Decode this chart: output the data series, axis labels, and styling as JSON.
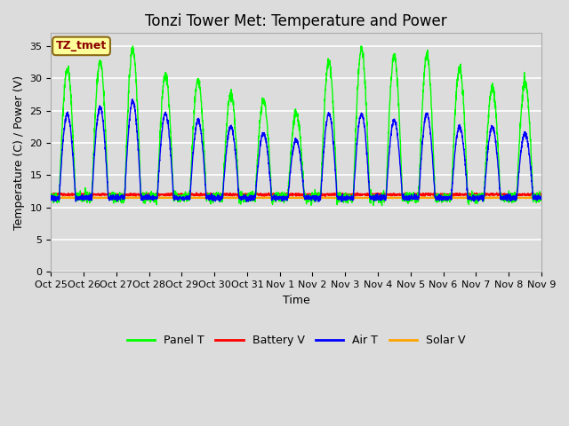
{
  "title": "Tonzi Tower Met: Temperature and Power",
  "xlabel": "Time",
  "ylabel": "Temperature (C) / Power (V)",
  "ylim": [
    0,
    37
  ],
  "yticks": [
    0,
    5,
    10,
    15,
    20,
    25,
    30,
    35
  ],
  "xlim_start": 0,
  "xlim_end": 360,
  "xtick_positions": [
    0,
    24,
    48,
    72,
    96,
    120,
    144,
    168,
    192,
    216,
    240,
    264,
    288,
    312,
    336,
    360
  ],
  "xtick_labels": [
    "Oct 25",
    "Oct 26",
    "Oct 27",
    "Oct 28",
    "Oct 29",
    "Oct 30",
    "Oct 31",
    "Nov 1",
    "Nov 2",
    "Nov 3",
    "Nov 4",
    "Nov 5",
    "Nov 6",
    "Nov 7",
    "Nov 8",
    "Nov 9"
  ],
  "colors": {
    "panel_t": "#00FF00",
    "battery_v": "#FF0000",
    "air_t": "#0000FF",
    "solar_v": "#FFA500"
  },
  "legend_labels": [
    "Panel T",
    "Battery V",
    "Air T",
    "Solar V"
  ],
  "annotation_text": "TZ_tmet",
  "annotation_box_facecolor": "#FFFF99",
  "annotation_text_color": "#8B0000",
  "annotation_edge_color": "#8B6914",
  "grid_color": "#FFFFFF",
  "bg_color": "#DCDCDC",
  "title_fontsize": 12,
  "label_fontsize": 9,
  "tick_fontsize": 8,
  "legend_fontsize": 9
}
